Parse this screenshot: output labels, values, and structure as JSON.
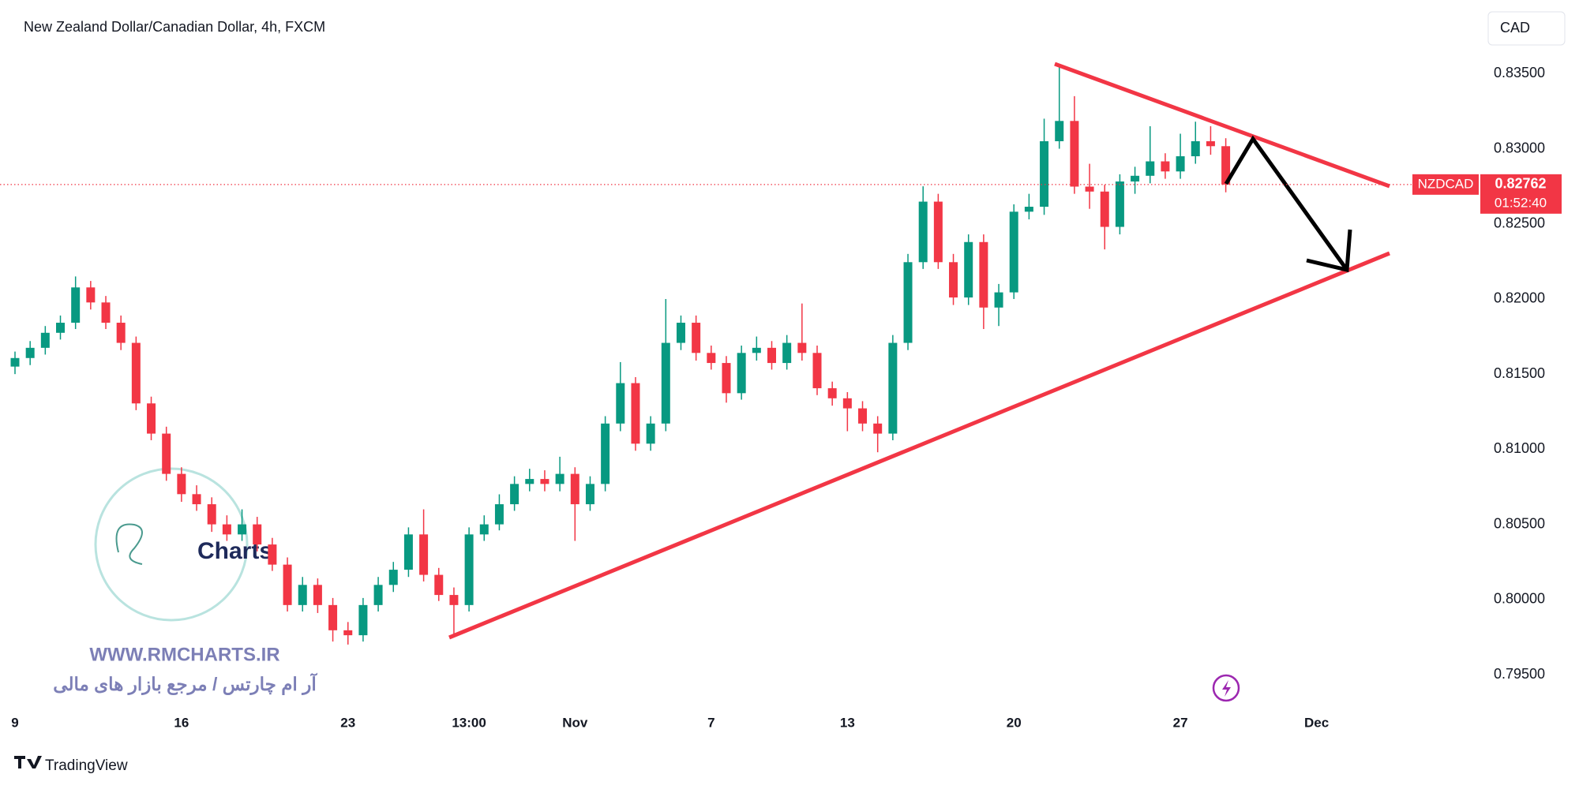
{
  "chart_data": {
    "type": "candlestick",
    "title": "New Zealand Dollar/Canadian Dollar, 4h, FXCM",
    "currency": "CAD",
    "countdown": "01:52:40",
    "last_price": 0.82762,
    "up_color": "#089981",
    "down_color": "#f23645",
    "ylim": [
      0.7929,
      0.8399
    ],
    "yticks": [
      {
        "value": 0.795,
        "label": "0.79500"
      },
      {
        "value": 0.8,
        "label": "0.80000"
      },
      {
        "value": 0.805,
        "label": "0.80500"
      },
      {
        "value": 0.81,
        "label": "0.81000"
      },
      {
        "value": 0.815,
        "label": "0.81500"
      },
      {
        "value": 0.82,
        "label": "0.82000"
      },
      {
        "value": 0.825,
        "label": "0.82500"
      },
      {
        "value": 0.83,
        "label": "0.83000"
      },
      {
        "value": 0.835,
        "label": "0.83500"
      }
    ],
    "categories": [
      "9",
      null,
      null,
      null,
      null,
      null,
      null,
      null,
      null,
      null,
      null,
      "16",
      null,
      null,
      null,
      null,
      null,
      null,
      null,
      null,
      null,
      null,
      "23",
      null,
      null,
      null,
      null,
      null,
      null,
      null,
      "13:00",
      null,
      null,
      null,
      null,
      null,
      null,
      "Nov",
      null,
      null,
      null,
      null,
      null,
      null,
      null,
      null,
      "7",
      null,
      null,
      null,
      null,
      null,
      null,
      null,
      null,
      "13",
      null,
      null,
      null,
      null,
      null,
      null,
      null,
      null,
      null,
      null,
      "20",
      null,
      null,
      null,
      null,
      null,
      null,
      null,
      null,
      null,
      null,
      "27",
      null,
      null,
      null,
      null,
      null,
      null,
      null,
      null,
      "Dec",
      null,
      null,
      null,
      null,
      null,
      null,
      null,
      null,
      null,
      null
    ],
    "series": [
      {
        "name": "NZDCAD",
        "open": [
          0.8155,
          0.81607,
          0.81675,
          0.81775,
          0.81842,
          0.82077,
          0.81977,
          0.81842,
          0.81708,
          0.81305,
          0.81104,
          0.80836,
          0.80701,
          0.80634,
          0.805,
          0.80433,
          0.805,
          0.80366,
          0.80232,
          0.79963,
          0.80097,
          0.79963,
          0.79795,
          0.79762,
          0.79963,
          0.80097,
          0.80198,
          0.80433,
          0.80164,
          0.8003,
          0.79963,
          0.80433,
          0.805,
          0.80634,
          0.80769,
          0.80802,
          0.80769,
          0.80836,
          0.80634,
          0.80769,
          0.81171,
          0.8144,
          0.81037,
          0.81171,
          0.81708,
          0.81842,
          0.81641,
          0.81574,
          0.81373,
          0.81641,
          0.81675,
          0.81574,
          0.81708,
          0.81641,
          0.81406,
          0.81339,
          0.81272,
          0.81171,
          0.81104,
          0.81708,
          0.82245,
          0.82648,
          0.82245,
          0.8201,
          0.82379,
          0.81943,
          0.82044,
          0.82581,
          0.82614,
          0.8305,
          0.83185,
          0.82748,
          0.82715,
          0.8248,
          0.82782,
          0.8282,
          0.82916,
          0.82849,
          0.8295,
          0.8305,
          0.83017,
          null,
          null,
          null,
          null,
          null,
          null,
          null,
          null,
          null,
          null,
          null,
          null,
          null,
          null,
          null,
          null
        ],
        "high": [
          0.8165,
          0.8172,
          0.8182,
          0.8189,
          0.8215,
          0.8212,
          0.8202,
          0.8189,
          0.8175,
          0.8135,
          0.8115,
          0.8088,
          0.8076,
          0.8068,
          0.8056,
          0.806,
          0.8055,
          0.8041,
          0.8028,
          0.8015,
          0.8014,
          0.8001,
          0.7985,
          0.8001,
          0.8015,
          0.8025,
          0.8048,
          0.806,
          0.8021,
          0.8008,
          0.8048,
          0.8056,
          0.807,
          0.8082,
          0.8087,
          0.8086,
          0.8095,
          0.8088,
          0.8082,
          0.8122,
          0.8158,
          0.8148,
          0.8122,
          0.82,
          0.8189,
          0.8189,
          0.8169,
          0.8162,
          0.8169,
          0.8175,
          0.8172,
          0.8176,
          0.8197,
          0.8169,
          0.8145,
          0.8138,
          0.8132,
          0.8122,
          0.8176,
          0.823,
          0.8275,
          0.827,
          0.823,
          0.8243,
          0.8243,
          0.821,
          0.8263,
          0.827,
          0.832,
          0.8355,
          0.8335,
          0.829,
          0.8276,
          0.8283,
          0.8288,
          0.8315,
          0.8297,
          0.831,
          0.8318,
          0.8315,
          0.8307,
          null,
          null,
          null,
          null,
          null,
          null,
          null,
          null,
          null,
          null,
          null,
          null,
          null,
          null,
          null,
          null
        ],
        "low": [
          0.815,
          0.8156,
          0.8163,
          0.8173,
          0.818,
          0.8193,
          0.818,
          0.8166,
          0.8126,
          0.8106,
          0.8079,
          0.8065,
          0.8059,
          0.8045,
          0.8039,
          0.8039,
          0.8032,
          0.8019,
          0.7992,
          0.7992,
          0.7991,
          0.7972,
          0.797,
          0.7972,
          0.7992,
          0.8005,
          0.8015,
          0.8012,
          0.7999,
          0.7977,
          0.7992,
          0.8039,
          0.8046,
          0.8059,
          0.8072,
          0.8072,
          0.8072,
          0.8039,
          0.8059,
          0.8072,
          0.8112,
          0.8099,
          0.8099,
          0.8112,
          0.8166,
          0.8159,
          0.8153,
          0.8131,
          0.8133,
          0.8159,
          0.8153,
          0.8153,
          0.8159,
          0.8136,
          0.8129,
          0.8112,
          0.8112,
          0.8098,
          0.8106,
          0.8166,
          0.822,
          0.822,
          0.8196,
          0.8196,
          0.818,
          0.8182,
          0.82,
          0.8253,
          0.8256,
          0.83,
          0.827,
          0.826,
          0.8233,
          0.8243,
          0.827,
          0.8277,
          0.828,
          0.828,
          0.829,
          0.8296,
          0.8271,
          null,
          null,
          null,
          null,
          null,
          null,
          null,
          null,
          null,
          null,
          null,
          null,
          null,
          null,
          null,
          null
        ],
        "close": [
          0.81607,
          0.81675,
          0.81775,
          0.81842,
          0.82077,
          0.81977,
          0.81842,
          0.81708,
          0.81305,
          0.81104,
          0.80836,
          0.80701,
          0.80634,
          0.805,
          0.80433,
          0.805,
          0.80366,
          0.80232,
          0.79963,
          0.80097,
          0.79963,
          0.79795,
          0.79762,
          0.79963,
          0.80097,
          0.80198,
          0.80433,
          0.80164,
          0.8003,
          0.79963,
          0.80433,
          0.805,
          0.80634,
          0.80769,
          0.80802,
          0.80769,
          0.80836,
          0.80634,
          0.80769,
          0.81171,
          0.8144,
          0.81037,
          0.81171,
          0.81708,
          0.81842,
          0.81641,
          0.81574,
          0.81373,
          0.81641,
          0.81675,
          0.81574,
          0.81708,
          0.81641,
          0.81406,
          0.81339,
          0.81272,
          0.81171,
          0.81104,
          0.81708,
          0.82245,
          0.82648,
          0.82245,
          0.8201,
          0.82379,
          0.81943,
          0.82044,
          0.82581,
          0.82614,
          0.8305,
          0.83185,
          0.82748,
          0.82715,
          0.8248,
          0.82782,
          0.8282,
          0.82916,
          0.82849,
          0.8295,
          0.8305,
          0.83017,
          0.82762,
          null,
          null,
          null,
          null,
          null,
          null,
          null,
          null,
          null,
          null,
          null,
          null,
          null,
          null,
          null,
          null
        ]
      }
    ],
    "watermark": {
      "logo_text": "Charts",
      "site": "WWW.RMCHARTS.IR",
      "tagline": "آر ام چارتس / مرجع بازار های مالی"
    },
    "brand": "TradingView"
  }
}
